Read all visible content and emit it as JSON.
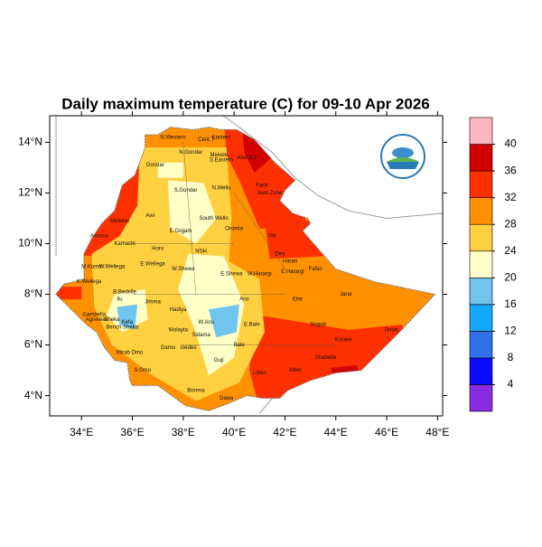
{
  "title": "Daily maximum temperature (C) for 09-10 Apr 2026",
  "map": {
    "xlim": [
      32.75,
      48.2
    ],
    "ylim": [
      3.2,
      15.05
    ],
    "xticks": [
      {
        "value": 34,
        "label": "34°E"
      },
      {
        "value": 36,
        "label": "36°E"
      },
      {
        "value": 38,
        "label": "38°E"
      },
      {
        "value": 40,
        "label": "40°E"
      },
      {
        "value": 42,
        "label": "42°E"
      },
      {
        "value": 44,
        "label": "44°E"
      },
      {
        "value": 46,
        "label": "46°E"
      },
      {
        "value": 48,
        "label": "48°E"
      }
    ],
    "yticks": [
      {
        "value": 4,
        "label": "4°N"
      },
      {
        "value": 6,
        "label": "6°N"
      },
      {
        "value": 8,
        "label": "8°N"
      },
      {
        "value": 10,
        "label": "10°N"
      },
      {
        "value": 12,
        "label": "12°N"
      },
      {
        "value": 14,
        "label": "14°N"
      }
    ],
    "regions": [
      "N.Western",
      "Cent.T",
      "Eastern",
      "N.Gondar",
      "Mekele",
      "S.Eastern",
      "Gondar",
      "Afar Z.1",
      "S.Gondar",
      "N.Wello",
      "Fanti",
      "Awsi Zone",
      "Metekel",
      "Awi",
      "South Wello",
      "Oromia",
      "E.Gojjam",
      "Siti",
      "Assosa",
      "Kamashi",
      "Horo",
      "NSH",
      "Dire",
      "Harari",
      "Fafan",
      "M.Komo",
      "W.Wellega",
      "E.Wellega",
      "W.Shewa",
      "E.Shewa",
      "W.Harargi",
      "E.Harargi",
      "K.Wellega",
      "B.Bedelle",
      "Jimma",
      "Ilu",
      "Arsi",
      "Erer",
      "Jarar",
      "Gambella",
      "Agnewak",
      "Kefa",
      "Sheka",
      "Hadiya",
      "W.Arsi",
      "E.Bale",
      "Nogob",
      "Doolo",
      "Bench Sheka",
      "Wolayta",
      "Sidama",
      "Bale",
      "Korahe",
      "Mirab Omo",
      "Gamo",
      "Gedeo",
      "Shabelle",
      "S.Omo",
      "Guji",
      "Liben",
      "Afder",
      "Borena",
      "Dawa"
    ],
    "colorbar": {
      "colors": [
        "#8a2be2",
        "#0a0aff",
        "#3070e8",
        "#14a8ff",
        "#70c4f0",
        "#ffffc8",
        "#ffd040",
        "#ff9000",
        "#ff3000",
        "#d20000",
        "#ffb6c1"
      ],
      "levels": [
        4,
        8,
        12,
        16,
        20,
        24,
        28,
        32,
        36,
        40
      ]
    }
  }
}
